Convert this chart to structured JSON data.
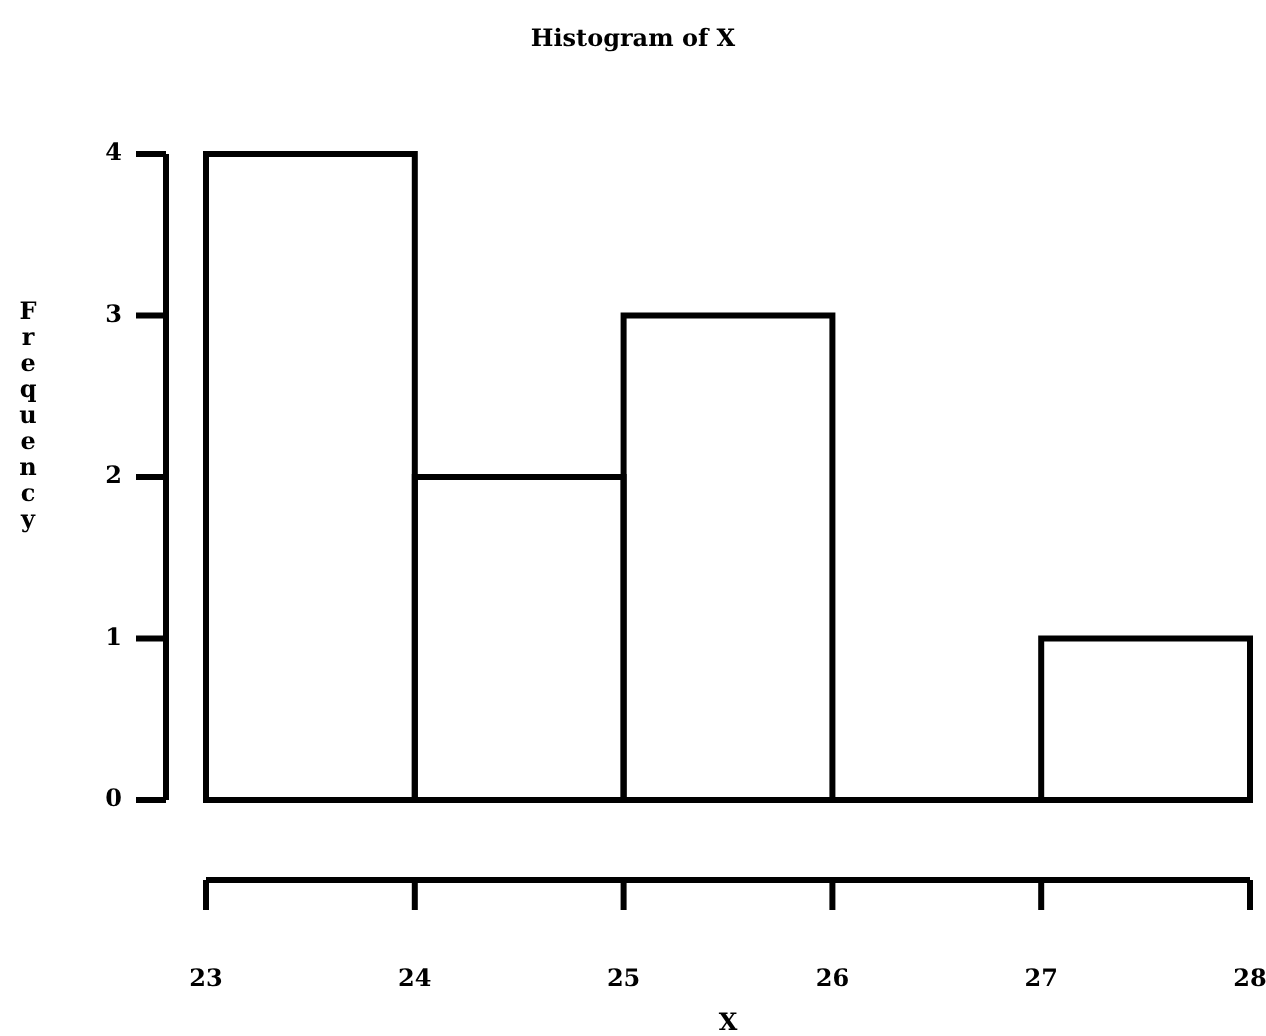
{
  "chart_data": {
    "type": "histogram",
    "title": "Histogram of X",
    "xlabel": "X",
    "ylabel": "Frequency",
    "bins": [
      23,
      24,
      25,
      26,
      27,
      28
    ],
    "values": [
      4,
      2,
      3,
      0,
      1
    ],
    "color": "#000000",
    "xlim": [
      23,
      28
    ],
    "xticks": [
      23,
      24,
      25,
      26,
      27,
      28
    ],
    "ylim": [
      0,
      4
    ],
    "yticks": [
      0,
      1,
      2,
      3,
      4
    ]
  }
}
